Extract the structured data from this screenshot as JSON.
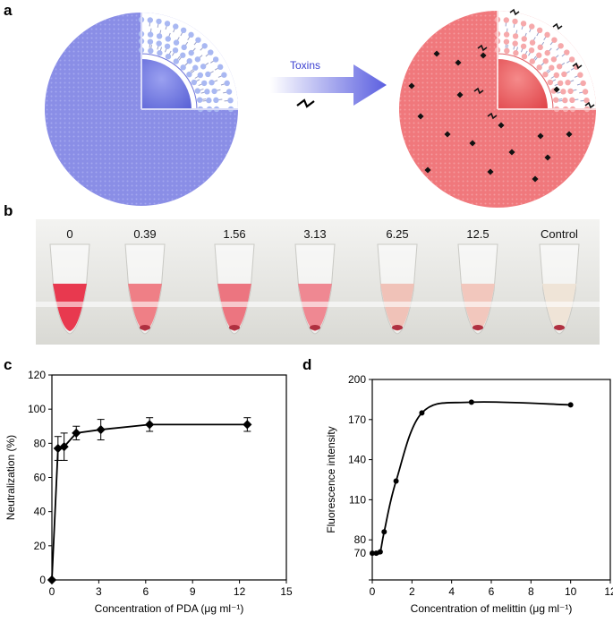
{
  "panels": {
    "a": "a",
    "b": "b",
    "c": "c",
    "d": "d"
  },
  "panel_a": {
    "arrow_label": "Toxins",
    "colors": {
      "vesicle_blue": "#8a8ee6",
      "vesicle_red": "#f0787c",
      "arrow": "#5b5fe0"
    }
  },
  "panel_b": {
    "tube_labels": [
      "0",
      "0.39",
      "1.56",
      "3.13",
      "6.25",
      "12.5",
      "Control"
    ],
    "liquid_colors": [
      "#e8394f",
      "#ef7f86",
      "#ec7580",
      "#ef8892",
      "#f0c2b8",
      "#f2c7bd",
      "#efe4d7"
    ]
  },
  "chart_data": [
    {
      "type": "line",
      "title": "",
      "xlabel": "Concentration of PDA (μg ml⁻¹)",
      "ylabel": "Neutralization (%)",
      "xlim": [
        0,
        15
      ],
      "ylim": [
        0,
        120
      ],
      "xticks": [
        0,
        3,
        6,
        9,
        12,
        15
      ],
      "yticks": [
        0,
        20,
        40,
        60,
        80,
        100,
        120
      ],
      "x": [
        0,
        0.39,
        0.78,
        1.56,
        3.13,
        6.25,
        12.5
      ],
      "y": [
        0,
        77,
        78,
        86,
        88,
        91,
        91
      ],
      "error": [
        0,
        7,
        8,
        4,
        6,
        4,
        4
      ]
    },
    {
      "type": "line",
      "title": "",
      "xlabel": "Concentration of melittin (μg ml⁻¹)",
      "ylabel": "Fluorescence intensity",
      "xlim": [
        0,
        12
      ],
      "ylim": [
        50,
        200
      ],
      "xticks": [
        0,
        2,
        4,
        6,
        8,
        10,
        12
      ],
      "yticks": [
        50,
        80,
        110,
        140,
        170,
        200
      ],
      "ytick_labels": [
        "",
        "80",
        "110",
        "140",
        "170",
        "200"
      ],
      "baseline_label": "70",
      "x": [
        0,
        0.2,
        0.4,
        0.6,
        1.2,
        2.5,
        5,
        10
      ],
      "y": [
        70,
        70,
        71,
        86,
        124,
        175,
        183,
        181
      ]
    }
  ]
}
